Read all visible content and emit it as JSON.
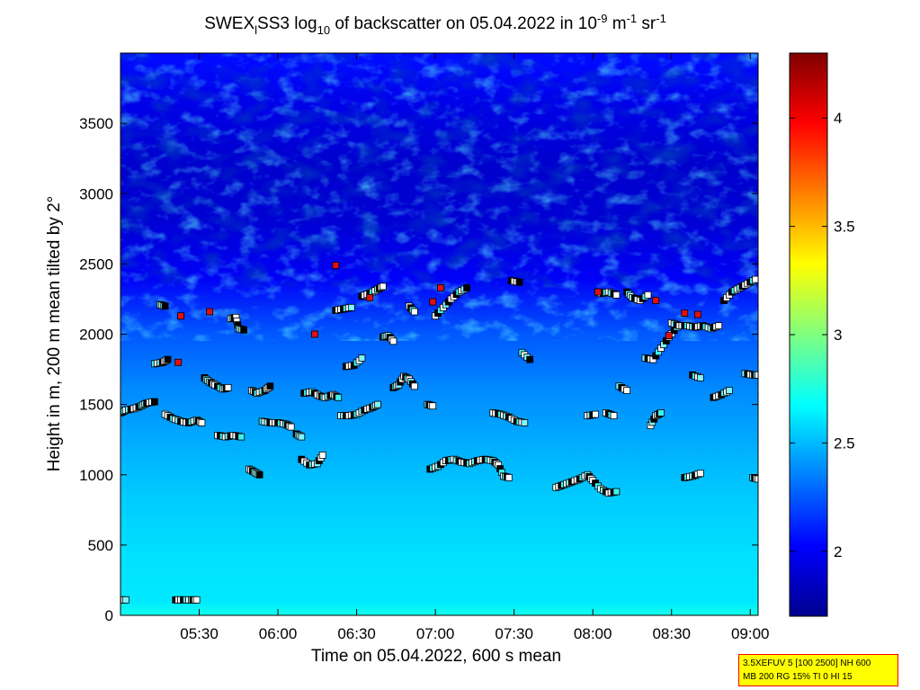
{
  "chart_data": {
    "type": "heatmap",
    "title": {
      "pre": "SWEX",
      "sub1": "l",
      "mid1": "SS3 log",
      "sub2": "10",
      "mid2": " of backscatter on 05.04.2022 in 10",
      "sup1": "-9",
      "mid3": " m",
      "sup2": "-1",
      "mid4": " sr",
      "sup3": "-1"
    },
    "xlabel": "Time on 05.04.2022, 600 s mean",
    "ylabel": "Height in m, 200 m mean tilted by 2°",
    "xlim": [
      "05:00",
      "09:03"
    ],
    "ylim": [
      0,
      4000
    ],
    "x_ticks": [
      "05:30",
      "06:00",
      "06:30",
      "07:00",
      "07:30",
      "08:00",
      "08:30",
      "09:00"
    ],
    "y_ticks": [
      0,
      500,
      1000,
      1500,
      2000,
      2500,
      3000,
      3500
    ],
    "colorbar": {
      "range": [
        1.7,
        4.3
      ],
      "ticks": [
        "2",
        "2.5",
        "3",
        "3.5",
        "4"
      ],
      "colormap": "jet"
    },
    "field_profile": [
      {
        "height": 0,
        "value": 2.72
      },
      {
        "height": 100,
        "value": 2.62
      },
      {
        "height": 400,
        "value": 2.6
      },
      {
        "height": 800,
        "value": 2.55
      },
      {
        "height": 1200,
        "value": 2.47
      },
      {
        "height": 1600,
        "value": 2.38
      },
      {
        "height": 2000,
        "value": 2.25
      },
      {
        "height": 2400,
        "value": 2.0
      },
      {
        "height": 2800,
        "value": 1.9
      },
      {
        "height": 3200,
        "value": 1.88
      },
      {
        "height": 3600,
        "value": 1.95
      },
      {
        "height": 3950,
        "value": 2.05
      }
    ],
    "marker_tracks": [
      {
        "pts": [
          [
            "05:00",
            1440
          ],
          [
            "05:02",
            1460
          ],
          [
            "05:05",
            1470
          ],
          [
            "05:08",
            1490
          ],
          [
            "05:10",
            1510
          ],
          [
            "05:13",
            1520
          ]
        ]
      },
      {
        "pts": [
          [
            "05:13",
            1790
          ],
          [
            "05:16",
            1800
          ],
          [
            "05:18",
            1820
          ]
        ]
      },
      {
        "pts": [
          [
            "05:15",
            2210
          ],
          [
            "05:17",
            2200
          ]
        ]
      },
      {
        "pts": [
          [
            "05:17",
            1430
          ],
          [
            "05:20",
            1400
          ],
          [
            "05:23",
            1380
          ],
          [
            "05:26",
            1370
          ],
          [
            "05:29",
            1390
          ],
          [
            "05:31",
            1370
          ]
        ]
      },
      {
        "pts": [
          [
            "05:32",
            1690
          ],
          [
            "05:34",
            1660
          ],
          [
            "05:36",
            1640
          ],
          [
            "05:39",
            1610
          ],
          [
            "05:41",
            1620
          ]
        ]
      },
      {
        "pts": [
          [
            "05:37",
            1280
          ],
          [
            "05:40",
            1270
          ],
          [
            "05:43",
            1280
          ],
          [
            "05:46",
            1270
          ]
        ]
      },
      {
        "pts": [
          [
            "05:42",
            2110
          ],
          [
            "05:44",
            2120
          ],
          [
            "05:45",
            2040
          ],
          [
            "05:47",
            2030
          ]
        ]
      },
      {
        "pts": [
          [
            "05:49",
            1040
          ],
          [
            "05:51",
            1020
          ],
          [
            "05:53",
            1000
          ]
        ]
      },
      {
        "pts": [
          [
            "05:50",
            1600
          ],
          [
            "05:52",
            1580
          ],
          [
            "05:55",
            1600
          ],
          [
            "05:57",
            1630
          ]
        ]
      },
      {
        "pts": [
          [
            "05:54",
            1380
          ],
          [
            "05:57",
            1370
          ],
          [
            "06:00",
            1370
          ],
          [
            "06:03",
            1360
          ],
          [
            "06:05",
            1340
          ]
        ]
      },
      {
        "pts": [
          [
            "06:07",
            1290
          ],
          [
            "06:09",
            1270
          ]
        ]
      },
      {
        "pts": [
          [
            "06:09",
            1110
          ],
          [
            "06:12",
            1070
          ],
          [
            "06:15",
            1080
          ],
          [
            "06:17",
            1140
          ]
        ]
      },
      {
        "pts": [
          [
            "06:10",
            1580
          ],
          [
            "06:13",
            1590
          ],
          [
            "06:16",
            1560
          ],
          [
            "06:18",
            1550
          ],
          [
            "06:21",
            1570
          ],
          [
            "06:23",
            1550
          ]
        ]
      },
      {
        "pts": [
          [
            "06:24",
            1420
          ],
          [
            "06:27",
            1420
          ],
          [
            "06:30",
            1430
          ],
          [
            "06:33",
            1460
          ],
          [
            "06:36",
            1480
          ],
          [
            "06:38",
            1500
          ]
        ]
      },
      {
        "pts": [
          [
            "06:22",
            2170
          ],
          [
            "06:25",
            2180
          ],
          [
            "06:28",
            2190
          ]
        ]
      },
      {
        "pts": [
          [
            "06:26",
            1770
          ],
          [
            "06:29",
            1780
          ],
          [
            "06:32",
            1830
          ]
        ]
      },
      {
        "pts": [
          [
            "06:32",
            2270
          ],
          [
            "06:35",
            2290
          ],
          [
            "06:38",
            2320
          ],
          [
            "06:40",
            2340
          ]
        ]
      },
      {
        "pts": [
          [
            "06:40",
            1980
          ],
          [
            "06:42",
            1990
          ],
          [
            "06:44",
            1950
          ]
        ]
      },
      {
        "pts": [
          [
            "06:44",
            1620
          ],
          [
            "06:46",
            1640
          ],
          [
            "06:48",
            1700
          ],
          [
            "06:50",
            1680
          ],
          [
            "06:52",
            1630
          ]
        ]
      },
      {
        "pts": [
          [
            "06:50",
            2200
          ],
          [
            "06:52",
            2160
          ]
        ]
      },
      {
        "pts": [
          [
            "06:57",
            1500
          ],
          [
            "06:59",
            1490
          ]
        ]
      },
      {
        "pts": [
          [
            "06:58",
            1040
          ],
          [
            "07:01",
            1060
          ],
          [
            "07:04",
            1100
          ],
          [
            "07:07",
            1110
          ],
          [
            "07:10",
            1090
          ],
          [
            "07:13",
            1080
          ],
          [
            "07:16",
            1100
          ],
          [
            "07:19",
            1110
          ],
          [
            "07:22",
            1100
          ],
          [
            "07:24",
            1070
          ],
          [
            "07:26",
            990
          ],
          [
            "07:28",
            980
          ]
        ]
      },
      {
        "pts": [
          [
            "07:00",
            2130
          ],
          [
            "07:03",
            2190
          ],
          [
            "07:06",
            2250
          ],
          [
            "07:09",
            2300
          ],
          [
            "07:12",
            2330
          ]
        ]
      },
      {
        "pts": [
          [
            "07:22",
            1440
          ],
          [
            "07:25",
            1430
          ],
          [
            "07:28",
            1410
          ],
          [
            "07:31",
            1380
          ],
          [
            "07:34",
            1370
          ]
        ]
      },
      {
        "pts": [
          [
            "07:29",
            2380
          ],
          [
            "07:32",
            2370
          ]
        ]
      },
      {
        "pts": [
          [
            "07:33",
            1870
          ],
          [
            "07:36",
            1820
          ]
        ]
      },
      {
        "pts": [
          [
            "07:46",
            910
          ],
          [
            "07:49",
            930
          ],
          [
            "07:52",
            950
          ],
          [
            "07:55",
            970
          ],
          [
            "07:58",
            1000
          ],
          [
            "08:00",
            960
          ],
          [
            "08:03",
            900
          ],
          [
            "08:06",
            870
          ],
          [
            "08:09",
            880
          ]
        ]
      },
      {
        "pts": [
          [
            "07:58",
            1420
          ],
          [
            "08:01",
            1430
          ]
        ]
      },
      {
        "pts": [
          [
            "08:03",
            2290
          ],
          [
            "08:06",
            2300
          ],
          [
            "08:09",
            2280
          ]
        ]
      },
      {
        "pts": [
          [
            "08:05",
            1440
          ],
          [
            "08:08",
            1420
          ]
        ]
      },
      {
        "pts": [
          [
            "08:10",
            1630
          ],
          [
            "08:13",
            1600
          ]
        ]
      },
      {
        "pts": [
          [
            "08:13",
            2300
          ],
          [
            "08:15",
            2260
          ],
          [
            "08:18",
            2240
          ],
          [
            "08:21",
            2280
          ]
        ]
      },
      {
        "pts": [
          [
            "08:20",
            1830
          ],
          [
            "08:23",
            1820
          ],
          [
            "08:26",
            1900
          ],
          [
            "08:29",
            1980
          ],
          [
            "08:32",
            2050
          ]
        ]
      },
      {
        "pts": [
          [
            "08:22",
            1350
          ],
          [
            "08:24",
            1420
          ],
          [
            "08:26",
            1440
          ]
        ]
      },
      {
        "pts": [
          [
            "08:30",
            2080
          ],
          [
            "08:33",
            2060
          ],
          [
            "08:36",
            2060
          ],
          [
            "08:39",
            2050
          ],
          [
            "08:42",
            2060
          ],
          [
            "08:45",
            2040
          ],
          [
            "08:48",
            2060
          ]
        ]
      },
      {
        "pts": [
          [
            "08:35",
            980
          ],
          [
            "08:38",
            990
          ],
          [
            "08:41",
            1010
          ]
        ]
      },
      {
        "pts": [
          [
            "08:38",
            1710
          ],
          [
            "08:41",
            1690
          ]
        ]
      },
      {
        "pts": [
          [
            "08:46",
            1550
          ],
          [
            "08:49",
            1570
          ],
          [
            "08:52",
            1600
          ]
        ]
      },
      {
        "pts": [
          [
            "08:50",
            2240
          ],
          [
            "08:53",
            2300
          ],
          [
            "08:56",
            2330
          ],
          [
            "08:59",
            2360
          ],
          [
            "09:02",
            2390
          ]
        ]
      },
      {
        "pts": [
          [
            "08:58",
            1720
          ],
          [
            "09:01",
            1710
          ],
          [
            "09:03",
            1710
          ]
        ]
      },
      {
        "pts": [
          [
            "09:01",
            980
          ],
          [
            "09:03",
            970
          ]
        ]
      },
      {
        "pts": [
          [
            "05:00",
            110
          ],
          [
            "05:02",
            110
          ]
        ]
      },
      {
        "pts": [
          [
            "05:21",
            110
          ],
          [
            "05:24",
            110
          ],
          [
            "05:27",
            110
          ],
          [
            "05:29",
            110
          ]
        ]
      }
    ],
    "red_markers": [
      [
        "05:23",
        2130
      ],
      [
        "05:22",
        1800
      ],
      [
        "05:34",
        2160
      ],
      [
        "06:14",
        2000
      ],
      [
        "06:22",
        2490
      ],
      [
        "06:35",
        2260
      ],
      [
        "06:59",
        2230
      ],
      [
        "07:02",
        2330
      ],
      [
        "08:02",
        2300
      ],
      [
        "08:24",
        2240
      ],
      [
        "08:29",
        1990
      ],
      [
        "08:35",
        2150
      ],
      [
        "08:40",
        2140
      ]
    ],
    "info_box": [
      "3.5XEFUV 5 [100 2500] NH 600",
      "MB 200 RG 15% TI 0 HI 15"
    ]
  }
}
